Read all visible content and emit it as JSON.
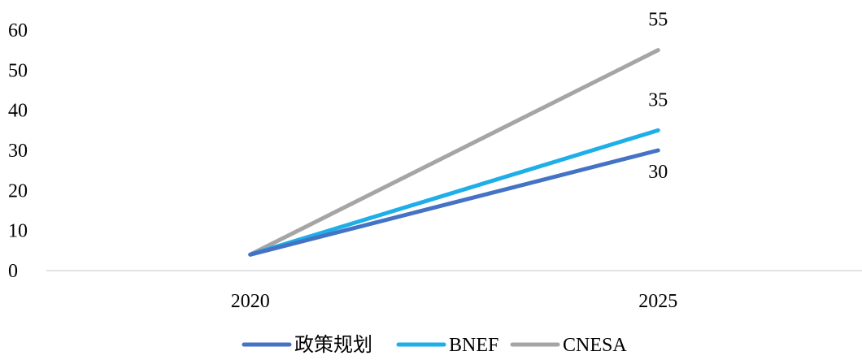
{
  "chart_data": {
    "type": "line",
    "title": "",
    "xlabel": "",
    "ylabel": "",
    "categories": [
      "2020",
      "2025"
    ],
    "ylim": [
      0,
      60
    ],
    "yticks": [
      0,
      10,
      20,
      30,
      40,
      50,
      60
    ],
    "grid": false,
    "legend": "bottom",
    "series": [
      {
        "name": "政策规划",
        "values": [
          4,
          30
        ],
        "color": "#4472C4",
        "end_label": "30"
      },
      {
        "name": "BNEF",
        "values": [
          4,
          35
        ],
        "color": "#1EAEE8",
        "end_label": "35"
      },
      {
        "name": "CNESA",
        "values": [
          4,
          55
        ],
        "color": "#A5A5A5",
        "end_label": "55"
      }
    ]
  }
}
